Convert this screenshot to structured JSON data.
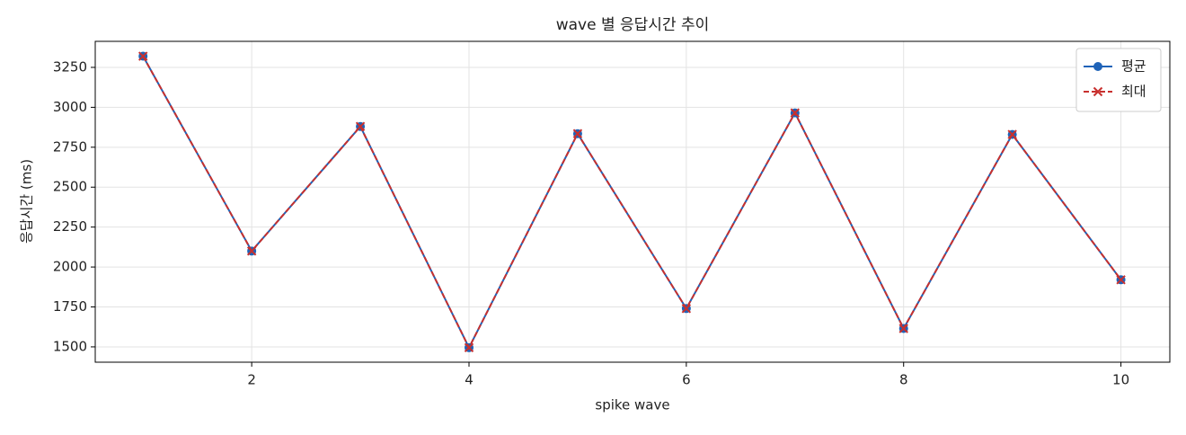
{
  "chart_data": {
    "type": "line",
    "title": "wave 별 응답시간 추이",
    "xlabel": "spike wave",
    "ylabel": "응답시간 (ms)",
    "x": [
      1,
      2,
      3,
      4,
      5,
      6,
      7,
      8,
      9,
      10
    ],
    "series": [
      {
        "name": "평균",
        "color": "#1f63b8",
        "linestyle": "solid",
        "marker": "circle",
        "values": [
          3320,
          2100,
          2880,
          1495,
          2835,
          1740,
          2965,
          1615,
          2830,
          1920
        ]
      },
      {
        "name": "최대",
        "color": "#c8302e",
        "linestyle": "dashed",
        "marker": "x",
        "values": [
          3320,
          2100,
          2880,
          1495,
          2835,
          1740,
          2965,
          1615,
          2830,
          1920
        ]
      }
    ],
    "xlim": [
      0.56,
      10.45
    ],
    "xticks": [
      2,
      4,
      6,
      8,
      10
    ],
    "ylim": [
      1404,
      3413
    ],
    "yticks": [
      1500,
      1750,
      2000,
      2250,
      2500,
      2750,
      3000,
      3250
    ],
    "grid": true,
    "legend": "upper right"
  }
}
